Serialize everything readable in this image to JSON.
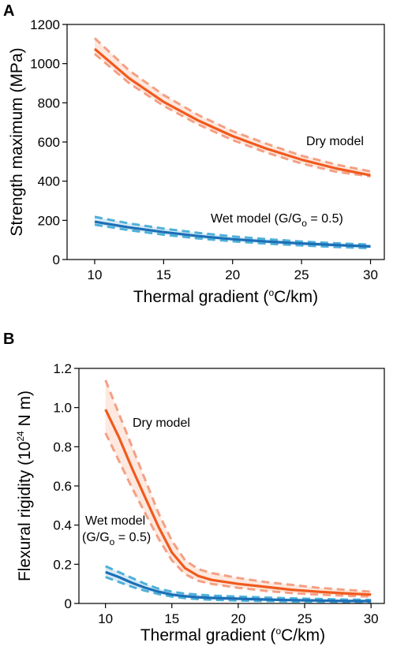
{
  "colors": {
    "dry": "#f05a1e",
    "dry_band": "#f4a084",
    "dry_fill": "#fde3d8",
    "wet": "#1c6fb7",
    "wet_band": "#4fb0d8",
    "wet_fill": "#cfe6f3"
  },
  "chart_data": [
    {
      "type": "line",
      "panel": "A",
      "xlabel_main": "Thermal gradient (",
      "xlabel_sup": "o",
      "xlabel_tail": "C/km)",
      "ylabel": "Strength maximum (MPa)",
      "xlim": [
        8,
        31
      ],
      "ylim": [
        0,
        1200
      ],
      "xticks": [
        10,
        15,
        20,
        25,
        30
      ],
      "yticks": [
        0,
        200,
        400,
        600,
        800,
        1000,
        1200
      ],
      "grid": false,
      "annotations": {
        "dry": "Dry model",
        "wet_main": "Wet model (G/G",
        "wet_sub": "o",
        "wet_tail": " = 0.5)"
      },
      "x": [
        10,
        12.5,
        15,
        17.5,
        20,
        22.5,
        25,
        27.5,
        30
      ],
      "series": [
        {
          "key": "dry_upper",
          "values": [
            1130,
            965,
            840,
            738,
            655,
            590,
            530,
            485,
            450
          ]
        },
        {
          "key": "dry_lower",
          "values": [
            1050,
            900,
            785,
            690,
            610,
            545,
            490,
            448,
            425
          ]
        },
        {
          "key": "dry",
          "values": [
            1075,
            925,
            805,
            710,
            630,
            565,
            510,
            465,
            430
          ]
        },
        {
          "key": "wet_upper",
          "values": [
            218,
            184,
            158,
            136,
            118,
            104,
            92,
            83,
            76
          ]
        },
        {
          "key": "wet_lower",
          "values": [
            178,
            150,
            127,
            108,
            93,
            81,
            72,
            64,
            58
          ]
        },
        {
          "key": "wet",
          "values": [
            193,
            164,
            140,
            120,
            104,
            92,
            82,
            74,
            67
          ]
        }
      ]
    },
    {
      "type": "line",
      "panel": "B",
      "xlabel_main": "Thermal gradient (",
      "xlabel_sup": "o",
      "xlabel_tail": "C/km)",
      "ylabel_main": "Flexural rigidity (10",
      "ylabel_sup": "24",
      "ylabel_tail": " N m)",
      "xlim": [
        8,
        31
      ],
      "ylim": [
        0,
        1.2
      ],
      "xticks": [
        10,
        15,
        20,
        25,
        30
      ],
      "yticks": [
        0,
        0.2,
        0.4,
        0.6,
        0.8,
        1.0,
        1.2
      ],
      "ytick_labels": [
        "0",
        "0.2",
        "0.4",
        "0.6",
        "0.8",
        "1.0",
        "1.2"
      ],
      "grid": false,
      "annotations": {
        "dry": "Dry model",
        "wet_line1": "Wet model",
        "wet_line2_main": "(G/G",
        "wet_line2_sub": "o",
        "wet_line2_tail": " = 0.5)"
      },
      "x": [
        10,
        11,
        12,
        13,
        14,
        15,
        16,
        17,
        18,
        20,
        22,
        24,
        26,
        28,
        30
      ],
      "series": [
        {
          "key": "dry_upper",
          "values": [
            1.14,
            0.97,
            0.8,
            0.63,
            0.46,
            0.32,
            0.22,
            0.175,
            0.155,
            0.13,
            0.11,
            0.095,
            0.08,
            0.07,
            0.06
          ]
        },
        {
          "key": "dry_lower",
          "values": [
            0.87,
            0.73,
            0.59,
            0.46,
            0.33,
            0.22,
            0.15,
            0.115,
            0.1,
            0.08,
            0.065,
            0.053,
            0.045,
            0.04,
            0.035
          ]
        },
        {
          "key": "dry",
          "values": [
            0.99,
            0.85,
            0.69,
            0.54,
            0.39,
            0.26,
            0.18,
            0.14,
            0.12,
            0.1,
            0.085,
            0.07,
            0.06,
            0.052,
            0.045
          ]
        },
        {
          "key": "wet_upper",
          "values": [
            0.19,
            0.16,
            0.13,
            0.1,
            0.075,
            0.06,
            0.05,
            0.045,
            0.04,
            0.035,
            0.03,
            0.026,
            0.023,
            0.02,
            0.018
          ]
        },
        {
          "key": "wet_lower",
          "values": [
            0.135,
            0.11,
            0.085,
            0.065,
            0.048,
            0.035,
            0.027,
            0.022,
            0.019,
            0.015,
            0.012,
            0.01,
            0.009,
            0.008,
            0.007
          ]
        },
        {
          "key": "wet",
          "values": [
            0.16,
            0.135,
            0.105,
            0.08,
            0.06,
            0.045,
            0.037,
            0.032,
            0.028,
            0.024,
            0.02,
            0.017,
            0.015,
            0.013,
            0.012
          ]
        }
      ]
    }
  ]
}
